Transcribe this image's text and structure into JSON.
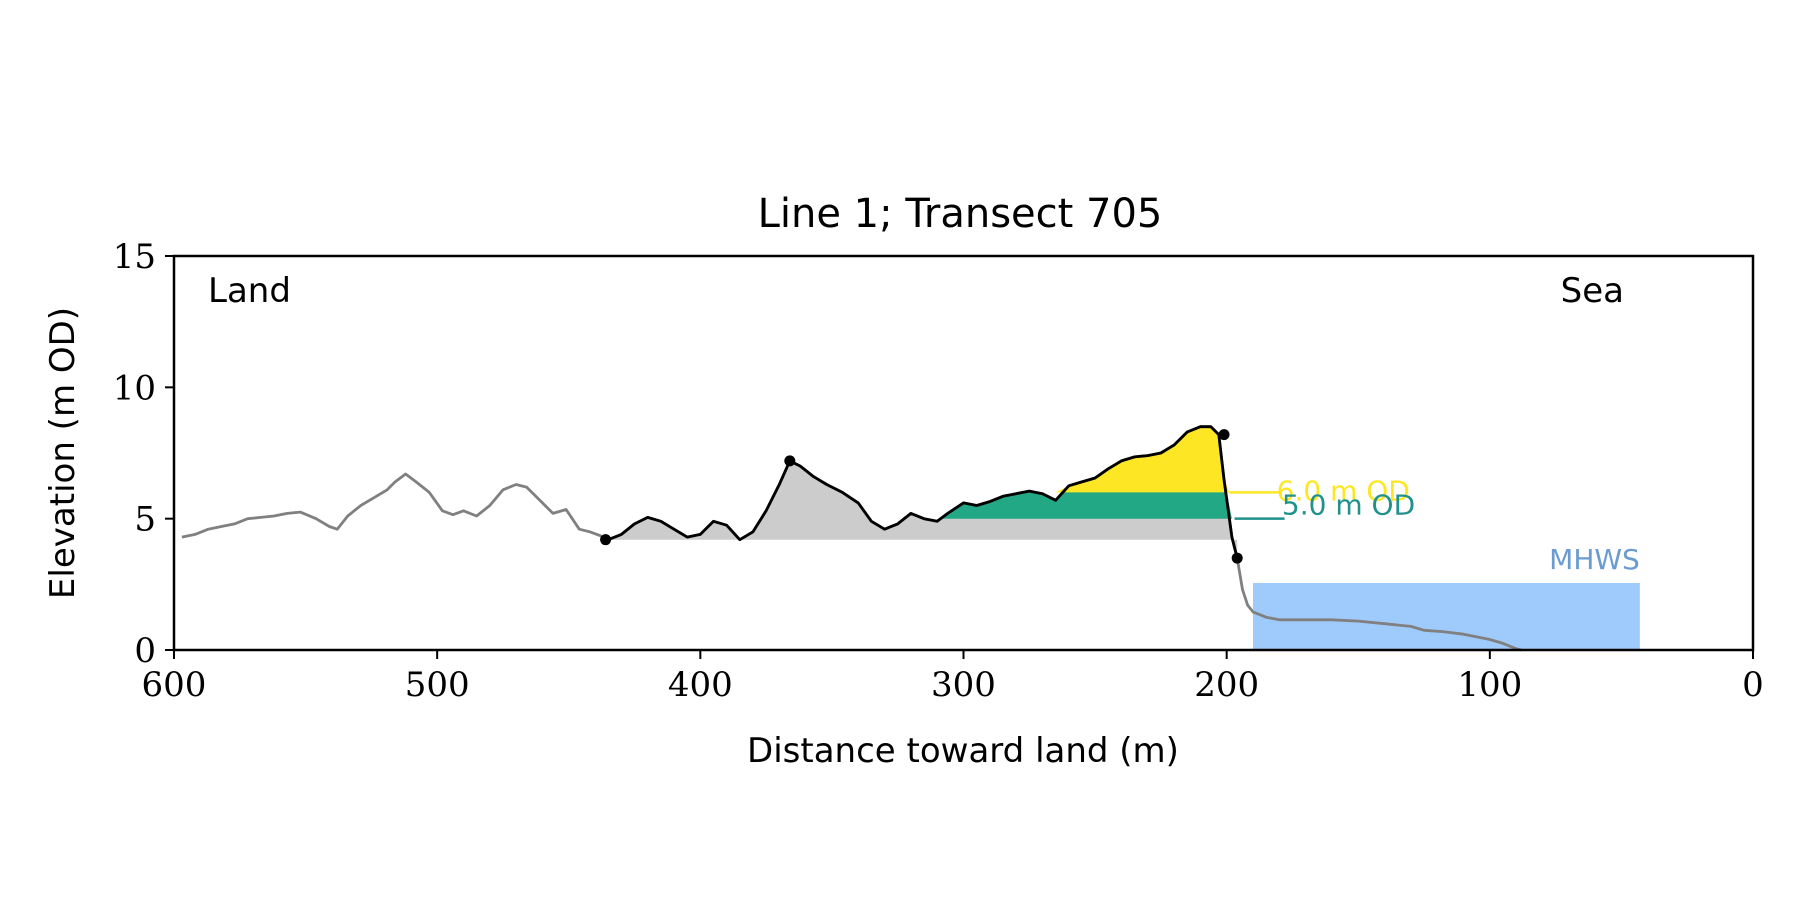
{
  "chart_data": {
    "type": "area",
    "title": "Line 1; Transect 705",
    "xlabel": "Distance toward land (m)",
    "ylabel": "Elevation (m OD)",
    "xlim": [
      600,
      0
    ],
    "ylim": [
      0,
      15
    ],
    "x_ticks": [
      600,
      500,
      400,
      300,
      200,
      100,
      0
    ],
    "y_ticks": [
      0,
      5,
      10,
      15
    ],
    "grid": false,
    "annotations": {
      "land": "Land",
      "sea": "Sea",
      "mhws": "MHWS",
      "level_6": "6.0 m OD",
      "level_5": "5.0 m OD"
    },
    "colors": {
      "profile": "#808080",
      "dune_profile": "#000000",
      "dune_fill": "#cccccc",
      "above_5m": "#22a884",
      "above_6m": "#fde725",
      "mhws_fill": "#9ecbfc",
      "mhws_label": "#6a9bd1",
      "label_5m": "#21918c",
      "label_6m": "#fde725"
    },
    "profile": {
      "x": [
        597,
        592,
        587,
        582,
        577,
        572,
        567,
        562,
        557,
        552,
        546,
        541,
        538,
        534,
        529,
        524,
        519,
        516,
        512,
        508,
        503,
        498,
        494,
        490,
        485,
        480,
        475,
        470,
        466,
        461,
        456,
        451,
        446,
        442,
        438,
        435,
        430,
        425,
        420,
        415,
        410,
        405,
        400,
        395,
        390,
        385,
        380,
        375,
        370,
        366,
        362,
        357,
        352,
        346,
        340,
        335,
        330,
        325,
        320,
        315,
        310,
        306,
        300,
        295,
        290,
        285,
        280,
        275,
        270,
        265,
        260,
        255,
        250,
        245,
        240,
        235,
        230,
        225,
        220,
        215,
        210,
        206,
        203,
        201,
        198,
        196,
        194,
        192,
        190,
        185,
        180,
        170,
        160,
        150,
        140,
        130,
        125,
        118,
        110,
        105,
        100,
        95,
        90,
        88
      ],
      "y": [
        4.3,
        4.4,
        4.6,
        4.7,
        4.8,
        5.0,
        5.05,
        5.1,
        5.2,
        5.25,
        5.0,
        4.7,
        4.6,
        5.1,
        5.5,
        5.8,
        6.1,
        6.4,
        6.7,
        6.4,
        6.0,
        5.3,
        5.15,
        5.3,
        5.1,
        5.5,
        6.1,
        6.3,
        6.2,
        5.7,
        5.2,
        5.35,
        4.6,
        4.5,
        4.35,
        4.2,
        4.4,
        4.8,
        5.05,
        4.9,
        4.6,
        4.3,
        4.4,
        4.9,
        4.75,
        4.2,
        4.5,
        5.3,
        6.3,
        7.2,
        7.0,
        6.6,
        6.3,
        6.0,
        5.6,
        4.9,
        4.6,
        4.8,
        5.2,
        5.0,
        4.9,
        5.2,
        5.6,
        5.5,
        5.65,
        5.85,
        5.95,
        6.05,
        5.95,
        5.7,
        6.25,
        6.4,
        6.55,
        6.9,
        7.2,
        7.35,
        7.4,
        7.5,
        7.8,
        8.3,
        8.5,
        8.5,
        8.2,
        6.5,
        4.3,
        3.5,
        2.3,
        1.7,
        1.45,
        1.25,
        1.15,
        1.15,
        1.15,
        1.1,
        1.0,
        0.9,
        0.75,
        0.7,
        0.6,
        0.5,
        0.4,
        0.25,
        0.05,
        0.0
      ]
    },
    "dune": {
      "x_start": 436,
      "x_end": 196,
      "toe_elevation": 4.2,
      "crest_elevation": 8.2,
      "crest_distance": 201,
      "peak_distance": 366,
      "peak_elevation": 7.2
    },
    "level_6": {
      "elevation": 6.0,
      "x_from": 308,
      "x_to": 199
    },
    "level_5": {
      "elevation": 5.0,
      "x_from": 308,
      "x_to": 197
    },
    "mhws": {
      "elevation": 2.55,
      "x_from": 190,
      "x_to": 43
    }
  }
}
